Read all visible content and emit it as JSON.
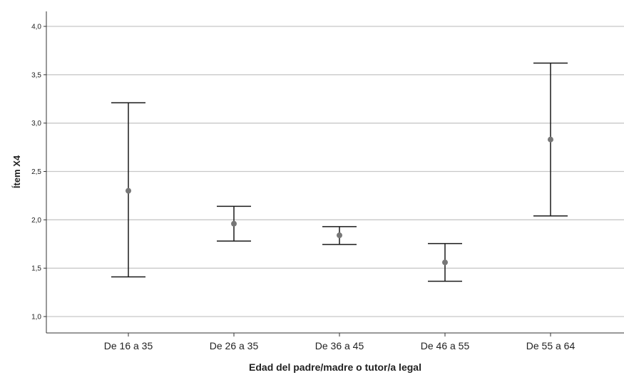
{
  "chart_data": {
    "type": "errorbar",
    "title": "",
    "xlabel": "Edad del padre/madre o tutor/a legal",
    "ylabel": "Ítem X4",
    "ylim": [
      0.85,
      4.15
    ],
    "yticks": [
      1.0,
      1.5,
      2.0,
      2.5,
      3.0,
      3.5,
      4.0
    ],
    "ytick_labels": [
      "1,0",
      "1,5",
      "2,0",
      "2,5",
      "3,0",
      "3,5",
      "4,0"
    ],
    "categories": [
      "De 16 a 35",
      "De 26 a 35",
      "De 36 a 45",
      "De 46 a 55",
      "De 55 a 64"
    ],
    "means": [
      2.3,
      1.96,
      1.84,
      1.56,
      2.83
    ],
    "lower": [
      1.41,
      1.78,
      1.745,
      1.365,
      2.04
    ],
    "upper": [
      3.21,
      2.14,
      1.93,
      1.755,
      3.62
    ],
    "grid": true,
    "colors": {
      "gridline": "#c8c8c8",
      "bars": "#1a1a1a",
      "markers": "#777777",
      "axis": "#333333"
    }
  }
}
